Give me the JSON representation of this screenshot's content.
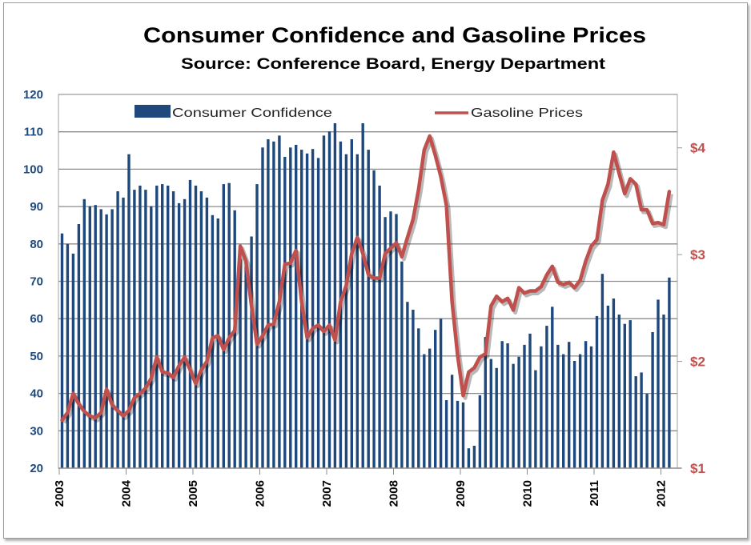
{
  "chart_data": {
    "type": "bar+line",
    "title": "Consumer Confidence and Gasoline Prices",
    "subtitle": "Source: Conference Board, Energy Department",
    "xlabel": "",
    "ylabel_left": "",
    "ylabel_right": "",
    "x_tick_labels": [
      "2003",
      "2004",
      "2005",
      "2006",
      "2007",
      "2008",
      "2009",
      "2010",
      "2011",
      "2012"
    ],
    "x_range": [
      "2003-01",
      "2012-02"
    ],
    "y_left": {
      "range": [
        20,
        120
      ],
      "ticks": [
        "20",
        "30",
        "40",
        "50",
        "60",
        "70",
        "80",
        "90",
        "100",
        "110",
        "120"
      ],
      "color": "#1F497D"
    },
    "y_right": {
      "range": [
        1,
        4.5
      ],
      "ticks": [
        "$1",
        "$2",
        "$3",
        "$4"
      ],
      "color": "#C0504D"
    },
    "grid": true,
    "legend": {
      "placement": "top",
      "entries": [
        "Consumer Confidence",
        "Gasoline Prices"
      ]
    },
    "series": [
      {
        "name": "Consumer Confidence",
        "type": "bar",
        "axis": "left",
        "color": "#1F497D",
        "frequency": "monthly",
        "values": [
          82.8,
          80,
          77.4,
          85.3,
          92,
          90.1,
          90.4,
          89.3,
          87.9,
          89.3,
          94.1,
          92.4,
          104,
          94.5,
          95.6,
          94.5,
          90.1,
          95.6,
          96,
          95.6,
          94.1,
          90.9,
          92,
          97.1,
          95.6,
          94.1,
          92.4,
          87.7,
          86.8,
          96,
          96.3,
          89,
          76,
          75,
          82,
          96,
          105.8,
          108,
          107.4,
          109,
          103.3,
          105.8,
          106.5,
          105.2,
          104.2,
          105.4,
          103,
          109,
          110.1,
          112.3,
          107.4,
          104,
          108,
          104,
          112.3,
          105.2,
          99.7,
          95.6,
          87.2,
          88.7,
          88,
          75.3,
          64.5,
          62.4,
          57.4,
          50.5,
          52,
          57,
          60,
          38.2,
          45,
          38,
          37.6,
          25.3,
          26,
          39.5,
          55.1,
          49.2,
          46.8,
          54,
          53.4,
          47.9,
          49.8,
          53,
          56,
          46.2,
          52.6,
          58.1,
          63.2,
          53,
          50.5,
          53.8,
          48.7,
          50.5,
          54,
          52.6,
          60.7,
          72,
          63.5,
          65.4,
          61.1,
          58.6,
          59.6,
          44.6,
          45.6,
          39.9,
          56.4,
          65.1,
          61.1,
          71
        ]
      },
      {
        "name": "Gasoline Prices",
        "type": "line",
        "axis": "right",
        "color": "#C0504D",
        "frequency": "monthly",
        "values": [
          1.45,
          1.52,
          1.7,
          1.6,
          1.53,
          1.49,
          1.47,
          1.52,
          1.74,
          1.59,
          1.54,
          1.49,
          1.54,
          1.66,
          1.7,
          1.75,
          1.84,
          2.04,
          1.9,
          1.89,
          1.85,
          1.96,
          2.04,
          1.92,
          1.79,
          1.92,
          2.0,
          2.22,
          2.24,
          2.11,
          2.22,
          2.29,
          3.08,
          2.94,
          2.52,
          2.16,
          2.24,
          2.34,
          2.35,
          2.56,
          2.91,
          2.92,
          3.04,
          2.56,
          2.22,
          2.31,
          2.34,
          2.28,
          2.34,
          2.2,
          2.56,
          2.71,
          3.01,
          3.16,
          3.01,
          2.81,
          2.78,
          2.78,
          3.01,
          3.06,
          3.11,
          2.98,
          3.16,
          3.33,
          3.61,
          3.98,
          4.11,
          3.93,
          3.73,
          3.46,
          2.56,
          2.06,
          1.68,
          1.9,
          1.94,
          2.04,
          2.07,
          2.52,
          2.61,
          2.56,
          2.59,
          2.48,
          2.69,
          2.64,
          2.66,
          2.66,
          2.7,
          2.81,
          2.89,
          2.74,
          2.72,
          2.74,
          2.69,
          2.76,
          2.94,
          3.08,
          3.14,
          3.51,
          3.66,
          3.96,
          3.76,
          3.57,
          3.71,
          3.66,
          3.42,
          3.42,
          3.29,
          3.3,
          3.28,
          3.59
        ]
      }
    ]
  }
}
